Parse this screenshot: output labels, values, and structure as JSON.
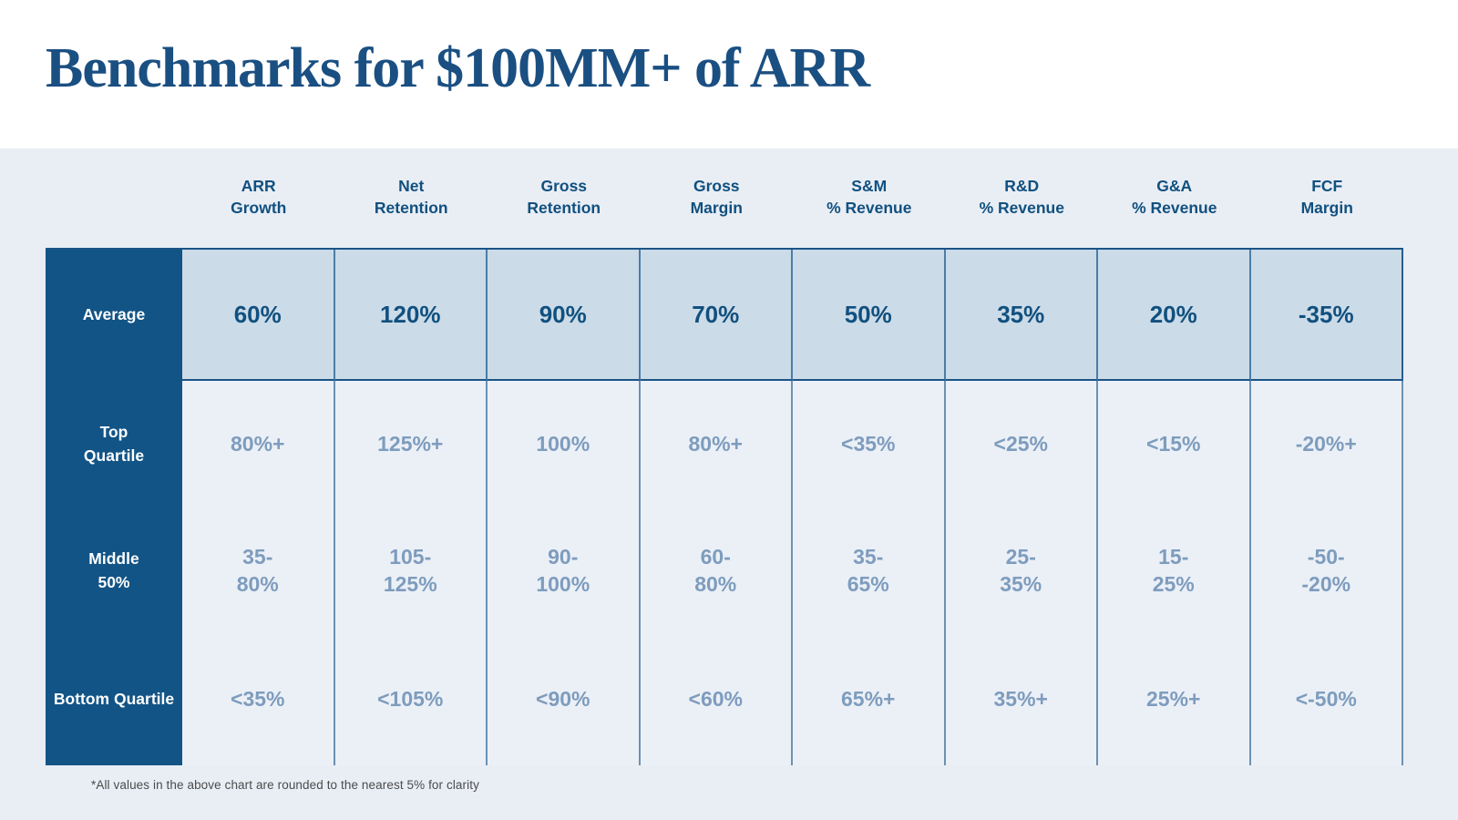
{
  "header": {
    "title": "Benchmarks for $100MM+ of ARR"
  },
  "table": {
    "column_headers": [
      "ARR\nGrowth",
      "Net\nRetention",
      "Gross\nRetention",
      "Gross\nMargin",
      "S&M\n% Revenue",
      "R&D\n% Revenue",
      "G&A\n% Revenue",
      "FCF\nMargin"
    ],
    "rows": [
      {
        "label": "Average",
        "values": [
          "60%",
          "120%",
          "90%",
          "70%",
          "50%",
          "35%",
          "20%",
          "-35%"
        ]
      },
      {
        "label": "Top\nQuartile",
        "values": [
          "80%+",
          "125%+",
          "100%",
          "80%+",
          "<35%",
          "<25%",
          "<15%",
          "-20%+"
        ]
      },
      {
        "label": "Middle\n50%",
        "values": [
          "35-\n80%",
          "105-\n125%",
          "90-\n100%",
          "60-\n80%",
          "35-\n65%",
          "25-\n35%",
          "15-\n25%",
          "-50-\n-20%"
        ]
      },
      {
        "label": "Bottom Quartile",
        "values": [
          "<35%",
          "<105%",
          "<90%",
          "<60%",
          "65%+",
          "35%+",
          "25%+",
          "<-50%"
        ]
      }
    ]
  },
  "footnote": "*All values in the above chart are rounded to the nearest 5% for clarity",
  "colors": {
    "title_blue": "#1a4f82",
    "dark_blue": "#125486",
    "steel_blue": "#6c91b3",
    "panel_bg": "#e9eef5",
    "average_cell_bg": "#cbdbe8",
    "quartile_text": "#7e9cbd"
  },
  "chart_data": {
    "type": "table",
    "title": "Benchmarks for $100MM+ of ARR",
    "columns": [
      "ARR Growth",
      "Net Retention",
      "Gross Retention",
      "Gross Margin",
      "S&M % Revenue",
      "R&D % Revenue",
      "G&A % Revenue",
      "FCF Margin"
    ],
    "rows": [
      {
        "name": "Average",
        "values": [
          "60%",
          "120%",
          "90%",
          "70%",
          "50%",
          "35%",
          "20%",
          "-35%"
        ]
      },
      {
        "name": "Top Quartile",
        "values": [
          "80%+",
          "125%+",
          "100%",
          "80%+",
          "<35%",
          "<25%",
          "<15%",
          "-20%+"
        ]
      },
      {
        "name": "Middle 50%",
        "values": [
          "35-80%",
          "105-125%",
          "90-100%",
          "60-80%",
          "35-65%",
          "25-35%",
          "15-25%",
          "-50--20%"
        ]
      },
      {
        "name": "Bottom Quartile",
        "values": [
          "<35%",
          "<105%",
          "<90%",
          "<60%",
          "65%+",
          "35%+",
          "25%+",
          "<-50%"
        ]
      }
    ],
    "footnote": "*All values in the above chart are rounded to the nearest 5% for clarity"
  }
}
